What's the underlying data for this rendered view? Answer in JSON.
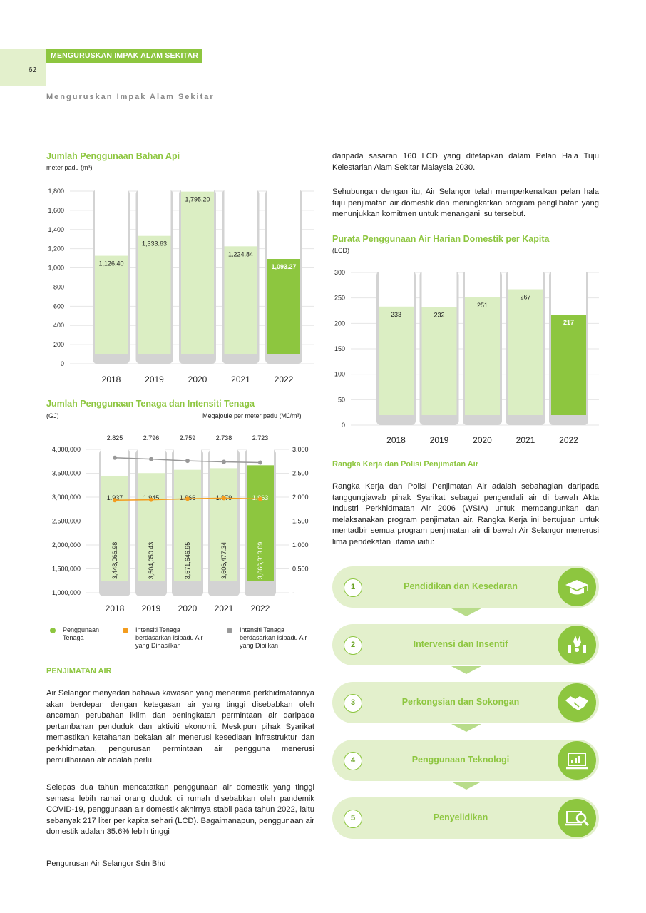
{
  "header": {
    "page_number": "62",
    "section_tag": "MENGURUSKAN IMPAK ALAM SEKITAR",
    "subtitle": "Menguruskan Impak Alam Sekitar"
  },
  "fuel_chart": {
    "title": "Jumlah Penggunaan Bahan Api",
    "unit": "meter padu (m³)"
  },
  "energy_chart": {
    "title": "Jumlah Penggunaan Tenaga dan Intensiti Tenaga",
    "unit_left": "(GJ)",
    "unit_right": "Megajoule per meter padu (MJ/m³)",
    "legend": [
      {
        "label": "Penggunaan Tenaga",
        "color": "#8dc63f"
      },
      {
        "label": "Intensiti Tenaga berdasarkan Isipadu Air yang Dihasilkan",
        "color": "#f39c1e"
      },
      {
        "label": "Intensiti Tenaga berdasarkan Isipadu Air yang Dibilkan",
        "color": "#999999"
      }
    ]
  },
  "water_chart": {
    "title": "Purata Penggunaan Air Harian Domestik per Kapita",
    "unit": "(LCD)"
  },
  "chart_data": [
    {
      "type": "bar",
      "title": "Jumlah Penggunaan Bahan Api",
      "ylabel": "meter padu (m³)",
      "categories": [
        "2018",
        "2019",
        "2020",
        "2021",
        "2022"
      ],
      "values": [
        1126.4,
        1333.63,
        1795.2,
        1224.84,
        1093.27
      ],
      "value_labels": [
        "1,126.40",
        "1,333.63",
        "1,795.20",
        "1,224.84",
        "1,093.27"
      ],
      "ylim": [
        0,
        1800
      ],
      "yticks": [
        "0",
        "200",
        "400",
        "600",
        "800",
        "1,000",
        "1,200",
        "1,400",
        "1,600",
        "1,800"
      ],
      "grid": true,
      "highlight_color": "#8dc63f",
      "bar_color": "#dbeec3"
    },
    {
      "type": "bar",
      "title": "Jumlah Penggunaan Tenaga dan Intensiti Tenaga",
      "ylabel": "(GJ)",
      "y2label": "Megajoule per meter padu (MJ/m³)",
      "categories": [
        "2018",
        "2019",
        "2020",
        "2021",
        "2022"
      ],
      "series": [
        {
          "name": "Penggunaan Tenaga",
          "type": "bar",
          "values": [
            3448066.98,
            3504050.43,
            3571646.95,
            3606477.34,
            3666313.69
          ],
          "labels": [
            "3,448,066.98",
            "3,504,050.43",
            "3,571,646.95",
            "3,606,477.34",
            "3,666,313.69"
          ]
        },
        {
          "name": "Intensiti Tenaga berdasarkan Isipadu Air yang Dihasilkan",
          "type": "line",
          "axis": "right",
          "values": [
            1.937,
            1.945,
            1.966,
            1.979,
            1.963
          ],
          "labels": [
            "1.937",
            "1.945",
            "1.966",
            "1.979",
            "1.963"
          ]
        },
        {
          "name": "Intensiti Tenaga berdasarkan Isipadu Air yang Dibilkan",
          "type": "line",
          "axis": "right",
          "values": [
            2.825,
            2.796,
            2.759,
            2.738,
            2.723
          ],
          "labels": [
            "2.825",
            "2.796",
            "2.759",
            "2.738",
            "2.723"
          ]
        }
      ],
      "ylim": [
        1000000,
        4000000
      ],
      "yticks": [
        "1,000,000",
        "1,500,000",
        "2,000,000",
        "2,500,000",
        "3,000,000",
        "3,500,000",
        "4,000,000"
      ],
      "y2lim": [
        0,
        3
      ],
      "y2ticks": [
        "-",
        "0.500",
        "1.000",
        "1.500",
        "2.000",
        "2.500",
        "3.000"
      ],
      "grid": true
    },
    {
      "type": "bar",
      "title": "Purata Penggunaan Air Harian Domestik per Kapita",
      "ylabel": "(LCD)",
      "categories": [
        "2018",
        "2019",
        "2020",
        "2021",
        "2022"
      ],
      "values": [
        233,
        232,
        251,
        267,
        217
      ],
      "value_labels": [
        "233",
        "232",
        "251",
        "267",
        "217"
      ],
      "ylim": [
        0,
        300
      ],
      "yticks": [
        "0",
        "50",
        "100",
        "150",
        "200",
        "250",
        "300"
      ],
      "grid": true
    }
  ],
  "left_text": {
    "heading": "PENJIMATAN AIR",
    "para1": "Air Selangor menyedari bahawa kawasan yang menerima perkhidmatannya akan berdepan dengan ketegasan air yang tinggi disebabkan oleh ancaman perubahan iklim dan peningkatan permintaan air daripada pertambahan penduduk dan aktiviti ekonomi. Meskipun pihak Syarikat memastikan ketahanan bekalan air menerusi kesediaan infrastruktur dan perkhidmatan, pengurusan permintaan air pengguna menerusi pemuliharaan air adalah perlu.",
    "para2": "Selepas dua tahun mencatatkan penggunaan air domestik yang tinggi semasa lebih ramai orang duduk di rumah disebabkan oleh pandemik COVID-19, penggunaan air domestik akhirnya stabil pada tahun 2022, iaitu sebanyak 217 liter per kapita sehari (LCD). Bagaimanapun, penggunaan air domestik adalah 35.6% lebih tinggi"
  },
  "right_text": {
    "para1": "daripada sasaran 160 LCD yang ditetapkan dalam Pelan Hala Tuju Kelestarian Alam Sekitar Malaysia 2030.",
    "para2": "Sehubungan dengan itu, Air Selangor telah memperkenalkan pelan hala tuju penjimatan air domestik dan meningkatkan program penglibatan yang menunjukkan komitmen untuk menangani isu tersebut.",
    "framework_heading": "Rangka Kerja dan Polisi Penjimatan Air",
    "para3": "Rangka Kerja dan Polisi Penjimatan Air adalah sebahagian daripada tanggungjawab pihak Syarikat sebagai pengendali air di bawah Akta Industri Perkhidmatan Air 2006 (WSIA) untuk membangunkan dan melaksanakan program penjimatan air. Rangka Kerja ini bertujuan untuk mentadbir semua program penjimatan air di bawah Air Selangor menerusi lima pendekatan utama iaitu:"
  },
  "steps": [
    {
      "num": "1",
      "label": "Pendidikan dan Kesedaran",
      "icon": "graduation-cap-icon"
    },
    {
      "num": "2",
      "label": "Intervensi dan Insentif",
      "icon": "hands-tools-icon"
    },
    {
      "num": "3",
      "label": "Perkongsian dan Sokongan",
      "icon": "handshake-icon"
    },
    {
      "num": "4",
      "label": "Penggunaan Teknologi",
      "icon": "computer-chart-icon"
    },
    {
      "num": "5",
      "label": "Penyelidikan",
      "icon": "research-magnifier-icon"
    }
  ],
  "footer": {
    "company": "Pengurusan Air Selangor Sdn Bhd"
  }
}
